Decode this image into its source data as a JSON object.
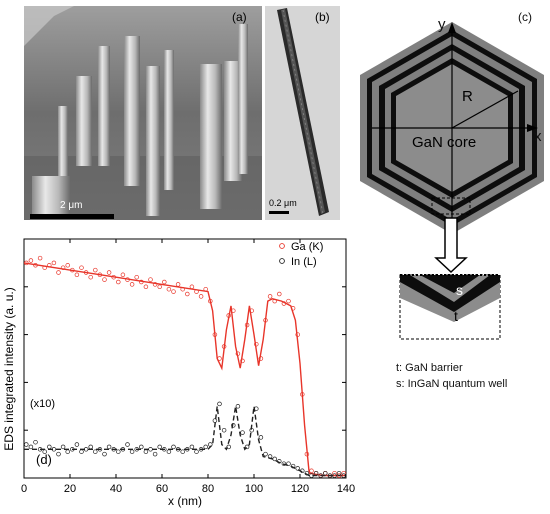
{
  "panels": {
    "a": {
      "label": "(a)",
      "scale_bar": "2 μm"
    },
    "b": {
      "label": "(b)",
      "scale_bar": "0.2 μm"
    },
    "c": {
      "label": "(c)",
      "axis_x": "x",
      "axis_y": "y",
      "radius_label": "R",
      "core_label": "GaN core",
      "inset_s": "s",
      "inset_t": "t",
      "legend": [
        "t: GaN barrier",
        "s: InGaN quantum well"
      ]
    },
    "d": {
      "label": "(d)",
      "scale_note": "(x10)"
    }
  },
  "colors": {
    "ga": "#e8352a",
    "in": "#222222",
    "core_gray": "#8c8c8c",
    "black": "#111111"
  },
  "chart_data": {
    "type": "scatter",
    "xlabel": "x (nm)",
    "ylabel": "EDS integrated intensity (a. u.)",
    "xlim": [
      0,
      140
    ],
    "ylim": [
      0,
      1
    ],
    "x_ticks": [
      "0",
      "20",
      "40",
      "60",
      "80",
      "100",
      "120",
      "140"
    ],
    "legend_position": "top-right",
    "series": [
      {
        "name": "Ga (K)",
        "marker": "open-circle",
        "fit": [
          [
            0,
            0.9
          ],
          [
            20,
            0.87
          ],
          [
            40,
            0.84
          ],
          [
            60,
            0.81
          ],
          [
            80,
            0.78
          ],
          [
            82,
            0.7
          ],
          [
            84,
            0.5
          ],
          [
            86,
            0.46
          ],
          [
            88,
            0.62
          ],
          [
            90,
            0.72
          ],
          [
            92,
            0.55
          ],
          [
            94,
            0.46
          ],
          [
            96,
            0.58
          ],
          [
            98,
            0.72
          ],
          [
            100,
            0.6
          ],
          [
            102,
            0.47
          ],
          [
            104,
            0.58
          ],
          [
            106,
            0.74
          ],
          [
            108,
            0.75
          ],
          [
            112,
            0.74
          ],
          [
            116,
            0.72
          ],
          [
            118,
            0.66
          ],
          [
            120,
            0.48
          ],
          [
            122,
            0.22
          ],
          [
            124,
            0.02
          ],
          [
            130,
            0.01
          ],
          [
            140,
            0.01
          ]
        ],
        "points": [
          [
            1,
            0.9
          ],
          [
            3,
            0.91
          ],
          [
            5,
            0.89
          ],
          [
            7,
            0.92
          ],
          [
            9,
            0.88
          ],
          [
            11,
            0.89
          ],
          [
            13,
            0.9
          ],
          [
            15,
            0.86
          ],
          [
            17,
            0.88
          ],
          [
            19,
            0.89
          ],
          [
            21,
            0.87
          ],
          [
            23,
            0.85
          ],
          [
            25,
            0.88
          ],
          [
            27,
            0.86
          ],
          [
            29,
            0.84
          ],
          [
            31,
            0.87
          ],
          [
            33,
            0.85
          ],
          [
            35,
            0.83
          ],
          [
            37,
            0.86
          ],
          [
            39,
            0.84
          ],
          [
            41,
            0.82
          ],
          [
            43,
            0.85
          ],
          [
            45,
            0.83
          ],
          [
            47,
            0.81
          ],
          [
            49,
            0.84
          ],
          [
            51,
            0.82
          ],
          [
            53,
            0.8
          ],
          [
            55,
            0.83
          ],
          [
            57,
            0.81
          ],
          [
            59,
            0.8
          ],
          [
            61,
            0.82
          ],
          [
            63,
            0.79
          ],
          [
            65,
            0.78
          ],
          [
            67,
            0.81
          ],
          [
            69,
            0.79
          ],
          [
            71,
            0.77
          ],
          [
            73,
            0.8
          ],
          [
            75,
            0.78
          ],
          [
            77,
            0.76
          ],
          [
            79,
            0.79
          ],
          [
            81,
            0.74
          ],
          [
            83,
            0.6
          ],
          [
            85,
            0.5
          ],
          [
            87,
            0.55
          ],
          [
            89,
            0.68
          ],
          [
            91,
            0.7
          ],
          [
            93,
            0.52
          ],
          [
            95,
            0.49
          ],
          [
            97,
            0.64
          ],
          [
            99,
            0.7
          ],
          [
            101,
            0.56
          ],
          [
            103,
            0.5
          ],
          [
            105,
            0.66
          ],
          [
            107,
            0.76
          ],
          [
            109,
            0.74
          ],
          [
            111,
            0.77
          ],
          [
            113,
            0.73
          ],
          [
            115,
            0.74
          ],
          [
            117,
            0.71
          ],
          [
            119,
            0.6
          ],
          [
            121,
            0.35
          ],
          [
            123,
            0.1
          ],
          [
            125,
            0.03
          ],
          [
            127,
            0.02
          ],
          [
            129,
            0.01
          ],
          [
            131,
            0.02
          ],
          [
            133,
            0.01
          ],
          [
            135,
            0.02
          ],
          [
            137,
            0.01
          ],
          [
            139,
            0.02
          ]
        ]
      },
      {
        "name": "In (L)",
        "marker": "open-circle",
        "fit": [
          [
            0,
            0.12
          ],
          [
            80,
            0.12
          ],
          [
            82,
            0.14
          ],
          [
            84,
            0.3
          ],
          [
            86,
            0.14
          ],
          [
            88,
            0.12
          ],
          [
            90,
            0.18
          ],
          [
            92,
            0.3
          ],
          [
            94,
            0.18
          ],
          [
            96,
            0.12
          ],
          [
            98,
            0.14
          ],
          [
            100,
            0.3
          ],
          [
            102,
            0.16
          ],
          [
            104,
            0.09
          ],
          [
            108,
            0.08
          ],
          [
            112,
            0.06
          ],
          [
            116,
            0.05
          ],
          [
            120,
            0.03
          ],
          [
            124,
            0.01
          ],
          [
            140,
            0.01
          ]
        ],
        "points": [
          [
            1,
            0.14
          ],
          [
            3,
            0.13
          ],
          [
            5,
            0.15
          ],
          [
            7,
            0.12
          ],
          [
            9,
            0.11
          ],
          [
            11,
            0.13
          ],
          [
            13,
            0.12
          ],
          [
            15,
            0.1
          ],
          [
            17,
            0.13
          ],
          [
            19,
            0.11
          ],
          [
            21,
            0.12
          ],
          [
            23,
            0.14
          ],
          [
            25,
            0.11
          ],
          [
            27,
            0.12
          ],
          [
            29,
            0.13
          ],
          [
            31,
            0.11
          ],
          [
            33,
            0.12
          ],
          [
            35,
            0.1
          ],
          [
            37,
            0.13
          ],
          [
            39,
            0.12
          ],
          [
            41,
            0.11
          ],
          [
            43,
            0.12
          ],
          [
            45,
            0.14
          ],
          [
            47,
            0.11
          ],
          [
            49,
            0.12
          ],
          [
            51,
            0.13
          ],
          [
            53,
            0.11
          ],
          [
            55,
            0.12
          ],
          [
            57,
            0.1
          ],
          [
            59,
            0.13
          ],
          [
            61,
            0.12
          ],
          [
            63,
            0.11
          ],
          [
            65,
            0.13
          ],
          [
            67,
            0.12
          ],
          [
            69,
            0.11
          ],
          [
            71,
            0.12
          ],
          [
            73,
            0.13
          ],
          [
            75,
            0.11
          ],
          [
            77,
            0.12
          ],
          [
            79,
            0.13
          ],
          [
            81,
            0.14
          ],
          [
            83,
            0.24
          ],
          [
            85,
            0.31
          ],
          [
            87,
            0.2
          ],
          [
            89,
            0.13
          ],
          [
            91,
            0.22
          ],
          [
            93,
            0.3
          ],
          [
            95,
            0.19
          ],
          [
            97,
            0.13
          ],
          [
            99,
            0.2
          ],
          [
            101,
            0.29
          ],
          [
            103,
            0.17
          ],
          [
            105,
            0.1
          ],
          [
            107,
            0.09
          ],
          [
            109,
            0.08
          ],
          [
            111,
            0.07
          ],
          [
            113,
            0.06
          ],
          [
            115,
            0.06
          ],
          [
            117,
            0.05
          ],
          [
            119,
            0.04
          ],
          [
            121,
            0.03
          ],
          [
            123,
            0.02
          ],
          [
            125,
            0.01
          ],
          [
            127,
            0.02
          ],
          [
            129,
            0.01
          ],
          [
            131,
            0.02
          ],
          [
            133,
            0.01
          ],
          [
            135,
            0.01
          ],
          [
            137,
            0.02
          ],
          [
            139,
            0.01
          ]
        ]
      }
    ]
  }
}
